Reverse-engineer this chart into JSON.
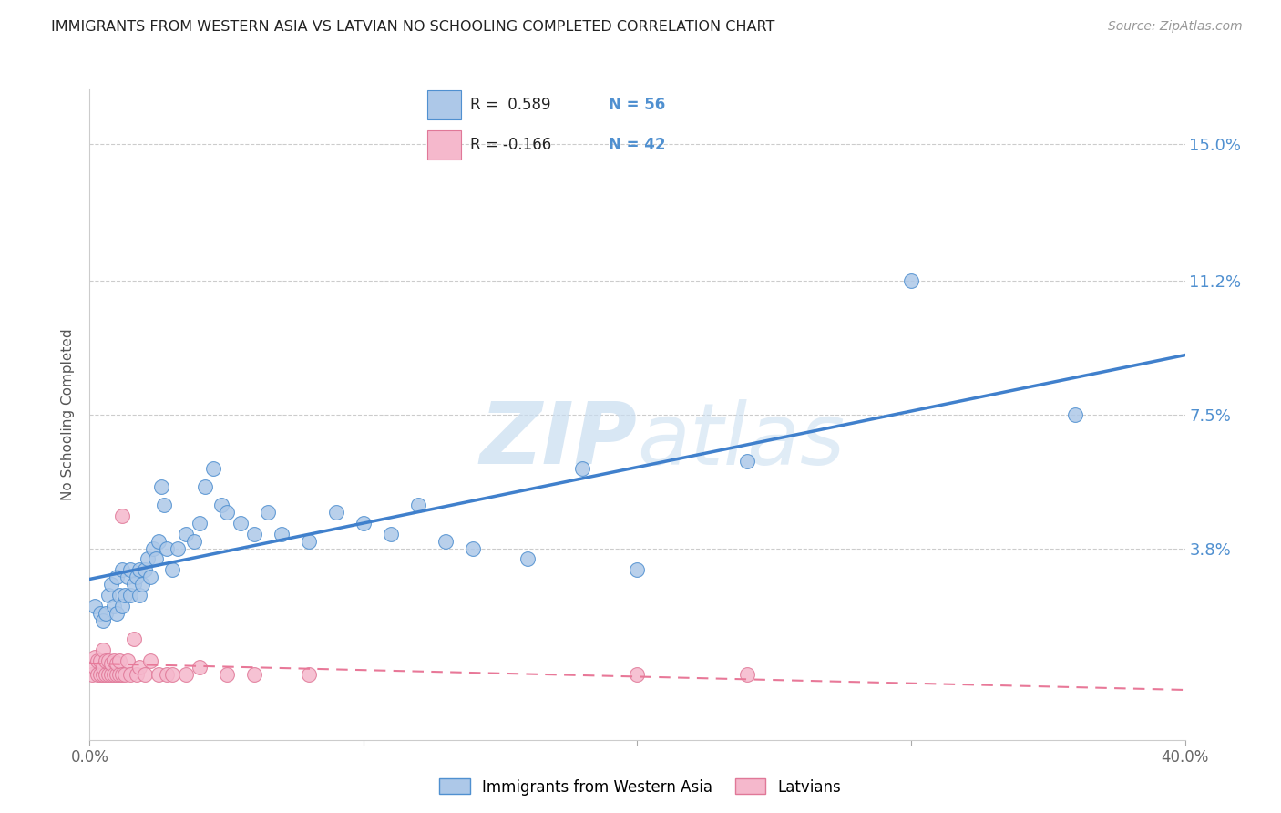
{
  "title": "IMMIGRANTS FROM WESTERN ASIA VS LATVIAN NO SCHOOLING COMPLETED CORRELATION CHART",
  "source": "Source: ZipAtlas.com",
  "ylabel": "No Schooling Completed",
  "xlim": [
    0.0,
    0.4
  ],
  "ylim": [
    -0.015,
    0.165
  ],
  "ytick_labels": [
    "3.8%",
    "7.5%",
    "11.2%",
    "15.0%"
  ],
  "ytick_values": [
    0.038,
    0.075,
    0.112,
    0.15
  ],
  "xtick_positions": [
    0.0,
    0.1,
    0.2,
    0.3,
    0.4
  ],
  "xtick_labels": [
    "0.0%",
    "",
    "",
    "",
    "40.0%"
  ],
  "blue_face": "#adc8e8",
  "pink_face": "#f5b8cc",
  "blue_edge": "#5090d0",
  "pink_edge": "#e07898",
  "trendline_blue": "#4080cc",
  "trendline_pink": "#e87898",
  "right_axis_color": "#5090d0",
  "watermark_color": "#c8ddf0",
  "grid_color": "#cccccc",
  "background_color": "#ffffff",
  "title_color": "#222222",
  "source_color": "#999999",
  "ylabel_color": "#555555",
  "blue_scatter_x": [
    0.002,
    0.004,
    0.005,
    0.006,
    0.007,
    0.008,
    0.009,
    0.01,
    0.01,
    0.011,
    0.012,
    0.012,
    0.013,
    0.014,
    0.015,
    0.015,
    0.016,
    0.017,
    0.018,
    0.018,
    0.019,
    0.02,
    0.021,
    0.022,
    0.023,
    0.024,
    0.025,
    0.026,
    0.027,
    0.028,
    0.03,
    0.032,
    0.035,
    0.038,
    0.04,
    0.042,
    0.045,
    0.048,
    0.05,
    0.055,
    0.06,
    0.065,
    0.07,
    0.08,
    0.09,
    0.1,
    0.11,
    0.12,
    0.13,
    0.14,
    0.16,
    0.18,
    0.2,
    0.24,
    0.3,
    0.36
  ],
  "blue_scatter_y": [
    0.022,
    0.02,
    0.018,
    0.02,
    0.025,
    0.028,
    0.022,
    0.02,
    0.03,
    0.025,
    0.022,
    0.032,
    0.025,
    0.03,
    0.032,
    0.025,
    0.028,
    0.03,
    0.032,
    0.025,
    0.028,
    0.032,
    0.035,
    0.03,
    0.038,
    0.035,
    0.04,
    0.055,
    0.05,
    0.038,
    0.032,
    0.038,
    0.042,
    0.04,
    0.045,
    0.055,
    0.06,
    0.05,
    0.048,
    0.045,
    0.042,
    0.048,
    0.042,
    0.04,
    0.048,
    0.045,
    0.042,
    0.05,
    0.04,
    0.038,
    0.035,
    0.06,
    0.032,
    0.062,
    0.112,
    0.075
  ],
  "pink_scatter_x": [
    0.001,
    0.002,
    0.002,
    0.003,
    0.003,
    0.004,
    0.004,
    0.005,
    0.005,
    0.005,
    0.006,
    0.006,
    0.007,
    0.007,
    0.008,
    0.008,
    0.009,
    0.009,
    0.01,
    0.01,
    0.011,
    0.011,
    0.012,
    0.012,
    0.013,
    0.014,
    0.015,
    0.016,
    0.017,
    0.018,
    0.02,
    0.022,
    0.025,
    0.028,
    0.03,
    0.035,
    0.04,
    0.05,
    0.06,
    0.08,
    0.2,
    0.24
  ],
  "pink_scatter_y": [
    0.003,
    0.005,
    0.008,
    0.003,
    0.007,
    0.003,
    0.007,
    0.003,
    0.005,
    0.01,
    0.003,
    0.007,
    0.003,
    0.007,
    0.003,
    0.006,
    0.003,
    0.007,
    0.003,
    0.006,
    0.003,
    0.007,
    0.003,
    0.047,
    0.003,
    0.007,
    0.003,
    0.013,
    0.003,
    0.005,
    0.003,
    0.007,
    0.003,
    0.003,
    0.003,
    0.003,
    0.005,
    0.003,
    0.003,
    0.003,
    0.003,
    0.003
  ]
}
